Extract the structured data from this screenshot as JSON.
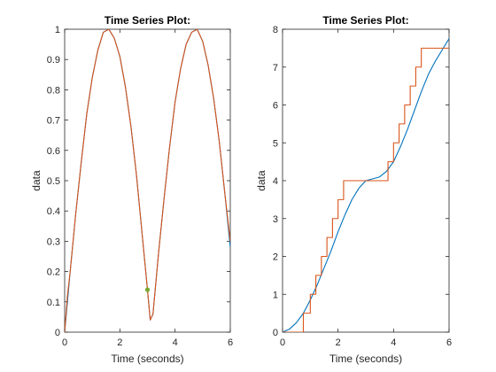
{
  "chart_data": [
    {
      "type": "line",
      "title": "Time Series Plot:",
      "xlabel": "Time (seconds)",
      "ylabel": "data",
      "xlim": [
        0,
        6
      ],
      "ylim": [
        0,
        1
      ],
      "xticks": [
        0,
        2,
        4,
        6
      ],
      "yticks": [
        0,
        0.1,
        0.2,
        0.3,
        0.4,
        0.5,
        0.6,
        0.7,
        0.8,
        0.9,
        1
      ],
      "ytick_labels": [
        "0",
        "0.1",
        "0.2",
        "0.3",
        "0.4",
        "0.5",
        "0.6",
        "0.7",
        "0.8",
        "0.9",
        "1"
      ],
      "xtick_labels": [
        "0",
        "2",
        "4",
        "6"
      ],
      "series": [
        {
          "color": "#0072BD",
          "style": "line",
          "x": [
            0,
            0.1,
            0.2,
            0.4,
            0.6,
            0.8,
            1.0,
            1.2,
            1.4,
            1.6,
            1.8,
            2.0,
            2.2,
            2.4,
            2.6,
            2.8,
            3.0,
            3.1,
            3.2,
            3.4,
            3.6,
            3.8,
            4.0,
            4.2,
            4.4,
            4.6,
            4.8,
            5.0,
            5.2,
            5.4,
            5.6,
            5.8,
            6.0
          ],
          "values": [
            0,
            0.1,
            0.2,
            0.39,
            0.56,
            0.72,
            0.84,
            0.93,
            0.99,
            1.0,
            0.97,
            0.91,
            0.81,
            0.68,
            0.52,
            0.33,
            0.14,
            0.04,
            0.06,
            0.26,
            0.44,
            0.61,
            0.76,
            0.87,
            0.95,
            0.99,
            1.0,
            0.96,
            0.88,
            0.77,
            0.63,
            0.46,
            0.28
          ]
        },
        {
          "color": "#D95319",
          "style": "line",
          "x": [
            0,
            0.1,
            0.1,
            0.2,
            0.4,
            0.6,
            0.8,
            1.0,
            1.2,
            1.4,
            1.6,
            1.8,
            2.0,
            2.2,
            2.4,
            2.6,
            2.8,
            3.0,
            3.1,
            3.2,
            3.4,
            3.6,
            3.8,
            4.0,
            4.2,
            4.4,
            4.6,
            4.8,
            5.0,
            5.2,
            5.4,
            5.6,
            5.8,
            6.0
          ],
          "values": [
            0,
            0.12,
            0.12,
            0.2,
            0.39,
            0.56,
            0.72,
            0.84,
            0.93,
            0.99,
            1.0,
            0.97,
            0.91,
            0.81,
            0.68,
            0.52,
            0.33,
            0.14,
            0.04,
            0.06,
            0.26,
            0.44,
            0.61,
            0.76,
            0.87,
            0.95,
            0.99,
            1.0,
            0.96,
            0.88,
            0.77,
            0.63,
            0.46,
            0.3
          ]
        },
        {
          "color": "#77AC30",
          "style": "marker",
          "x": [
            3.0
          ],
          "values": [
            0.14
          ]
        }
      ],
      "grid": false
    },
    {
      "type": "line",
      "title": "Time Series Plot:",
      "xlabel": "Time (seconds)",
      "ylabel": "data",
      "xlim": [
        0,
        6
      ],
      "ylim": [
        0,
        8
      ],
      "xticks": [
        0,
        2,
        4,
        6
      ],
      "yticks": [
        0,
        1,
        2,
        3,
        4,
        5,
        6,
        7,
        8
      ],
      "ytick_labels": [
        "0",
        "1",
        "2",
        "3",
        "4",
        "5",
        "6",
        "7",
        "8"
      ],
      "xtick_labels": [
        "0",
        "2",
        "4",
        "6"
      ],
      "series": [
        {
          "color": "#0072BD",
          "style": "line",
          "x": [
            0,
            0.25,
            0.5,
            0.75,
            1.0,
            1.25,
            1.5,
            1.75,
            2.0,
            2.25,
            2.5,
            2.75,
            3.0,
            3.25,
            3.5,
            3.75,
            4.0,
            4.25,
            4.5,
            4.75,
            5.0,
            5.25,
            5.5,
            5.75,
            6.0
          ],
          "values": [
            0,
            0.08,
            0.25,
            0.5,
            0.85,
            1.25,
            1.7,
            2.15,
            2.65,
            3.1,
            3.5,
            3.8,
            4.0,
            4.05,
            4.1,
            4.25,
            4.5,
            4.9,
            5.35,
            5.85,
            6.35,
            6.8,
            7.15,
            7.45,
            7.75
          ]
        },
        {
          "color": "#D95319",
          "style": "step",
          "x": [
            0,
            0.75,
            0.75,
            1.0,
            1.0,
            1.2,
            1.2,
            1.4,
            1.4,
            1.6,
            1.6,
            1.8,
            1.8,
            2.0,
            2.0,
            2.2,
            2.2,
            2.4,
            2.4,
            2.6,
            2.6,
            2.85,
            2.85,
            3.8,
            3.8,
            4.0,
            4.0,
            4.2,
            4.2,
            4.4,
            4.4,
            4.6,
            4.6,
            4.8,
            4.8,
            5.0,
            5.0,
            5.2,
            5.2,
            5.4,
            5.4,
            5.6,
            5.6,
            5.8,
            5.8,
            6.0
          ],
          "values": [
            0,
            0,
            0.5,
            0.5,
            1.0,
            1.0,
            1.5,
            1.5,
            2.0,
            2.0,
            2.5,
            2.5,
            3.0,
            3.0,
            3.5,
            3.5,
            4.0,
            4.0,
            4.0,
            4.0,
            4.0,
            4.0,
            4.0,
            4.0,
            4.5,
            4.5,
            5.0,
            5.0,
            5.5,
            5.5,
            6.0,
            6.0,
            6.5,
            6.5,
            7.0,
            7.0,
            7.5,
            7.5,
            7.5,
            7.5,
            7.5,
            7.5,
            7.5,
            7.5,
            7.5,
            7.5
          ]
        }
      ],
      "grid": false
    }
  ]
}
